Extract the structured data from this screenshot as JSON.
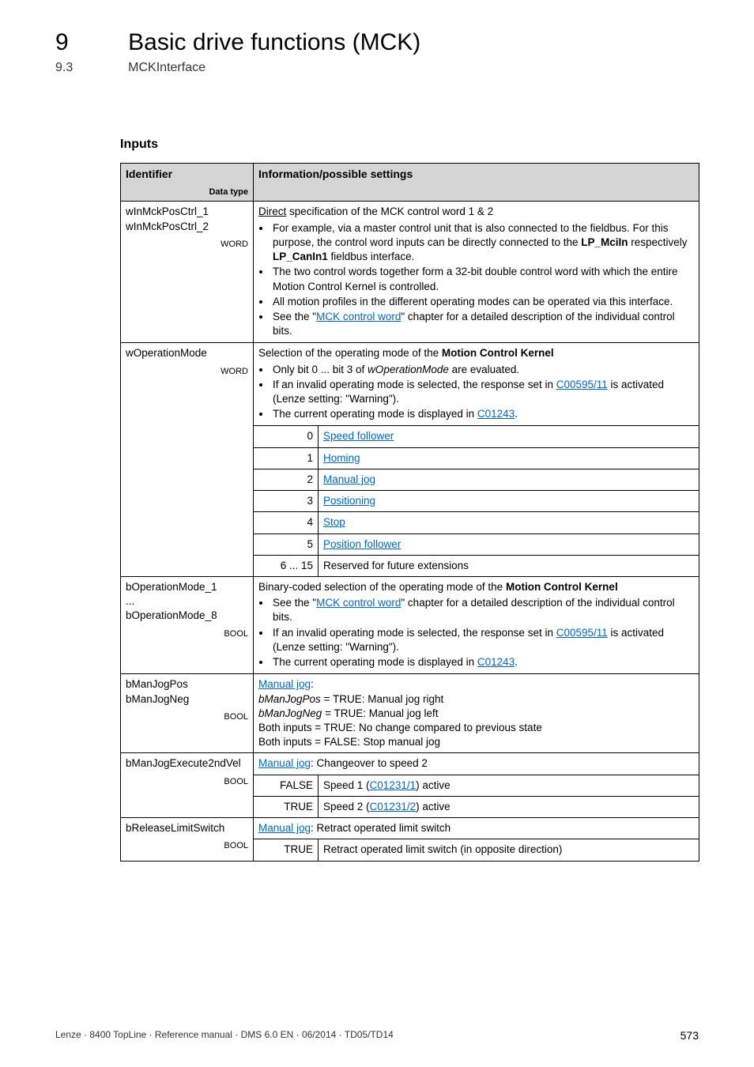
{
  "header": {
    "chapter_num": "9",
    "chapter_title": "Basic drive functions (MCK)",
    "section_num": "9.3",
    "section_title": "MCKInterface"
  },
  "heading": "Inputs",
  "table": {
    "head": {
      "ident": "Identifier",
      "datatype_label": "Data type",
      "info": "Information/possible settings"
    },
    "rows": {
      "r1": {
        "ident": "wInMckPosCtrl_1\nwInMckPosCtrl_2",
        "dtype": "WORD",
        "lead_pre": "Direct",
        "lead_post": " specification of the MCK control word 1 & 2",
        "b1a": "For example, via a master control unit that is also connected to the fieldbus. For this purpose, the control word inputs can be directly connected to the ",
        "b1b": "LP_MciIn",
        "b1c": " respectively ",
        "b1d": "LP_CanIn1",
        "b1e": " fieldbus interface.",
        "b2": "The two control words together form a 32-bit double control word with which the entire Motion Control Kernel is controlled.",
        "b3": "All motion profiles in the different operating modes can be operated via this interface.",
        "b4a": "See the \"",
        "b4link": "MCK control word",
        "b4b": "\" chapter for a detailed description of the individual control bits."
      },
      "r2": {
        "ident": "wOperationMode",
        "dtype": "WORD",
        "lead_a": "Selection of the operating mode of the ",
        "lead_b": "Motion Control Kernel",
        "b1a": "Only bit 0 ... bit 3 of ",
        "b1i": "wOperationMode",
        "b1b": " are evaluated.",
        "b2a": "If an invalid operating mode is selected, the response set in ",
        "b2link": "C00595/11",
        "b2b": " is activated (Lenze setting: \"Warning\").",
        "b3a": "The current operating mode is displayed in ",
        "b3link": "C01243",
        "b3b": "."
      },
      "modes": {
        "m0n": "0",
        "m0t": "Speed follower",
        "m1n": "1",
        "m1t": "Homing",
        "m2n": "2",
        "m2t": "Manual jog",
        "m3n": "3",
        "m3t": "Positioning",
        "m4n": "4",
        "m4t": "Stop",
        "m5n": "5",
        "m5t": "Position follower",
        "m6n": "6 ... 15",
        "m6t": "Reserved for future extensions"
      },
      "r3": {
        "ident": "bOperationMode_1\n...\nbOperationMode_8",
        "dtype": "BOOL",
        "lead_a": "Binary-coded selection of the operating mode of the ",
        "lead_b": "Motion Control Kernel",
        "b1a": "See the \"",
        "b1link": "MCK control word",
        "b1b": "\" chapter for a detailed description of the individual control bits.",
        "b2a": "If an invalid operating mode is selected, the response set in ",
        "b2link": "C00595/11",
        "b2b": " is activated (Lenze setting: \"Warning\").",
        "b3a": "The current operating mode is displayed in ",
        "b3link": "C01243",
        "b3b": "."
      },
      "r4": {
        "ident": "bManJogPos\nbManJogNeg",
        "dtype": "BOOL",
        "leadlink": "Manual jog",
        "l1i": "bManJogPos",
        "l1t": " = TRUE: Manual jog right",
        "l2i": "bManJogNeg",
        "l2t": " = TRUE: Manual jog left",
        "l3": "Both inputs = TRUE: No change compared to previous state",
        "l4": "Both inputs = FALSE: Stop manual jog"
      },
      "r5": {
        "ident": "bManJogExecute2ndVel",
        "dtype": "BOOL",
        "leadlink": "Manual jog",
        "leadtail": ": Changeover to speed 2",
        "fa": "FALSE",
        "fta": "Speed 1 (",
        "ftlink": "C01231/1",
        "ftb": ") active",
        "ta": "TRUE",
        "tta": "Speed 2 (",
        "ttlink": "C01231/2",
        "ttb": ") active"
      },
      "r6": {
        "ident": "bReleaseLimitSwitch",
        "dtype": "BOOL",
        "leadlink": "Manual jog",
        "leadtail": ": Retract operated limit switch",
        "ta": "TRUE",
        "tt": "Retract operated limit switch (in opposite direction)"
      }
    }
  },
  "footer": {
    "left": "Lenze · 8400 TopLine · Reference manual · DMS 6.0 EN · 06/2014 · TD05/TD14",
    "page": "573"
  }
}
